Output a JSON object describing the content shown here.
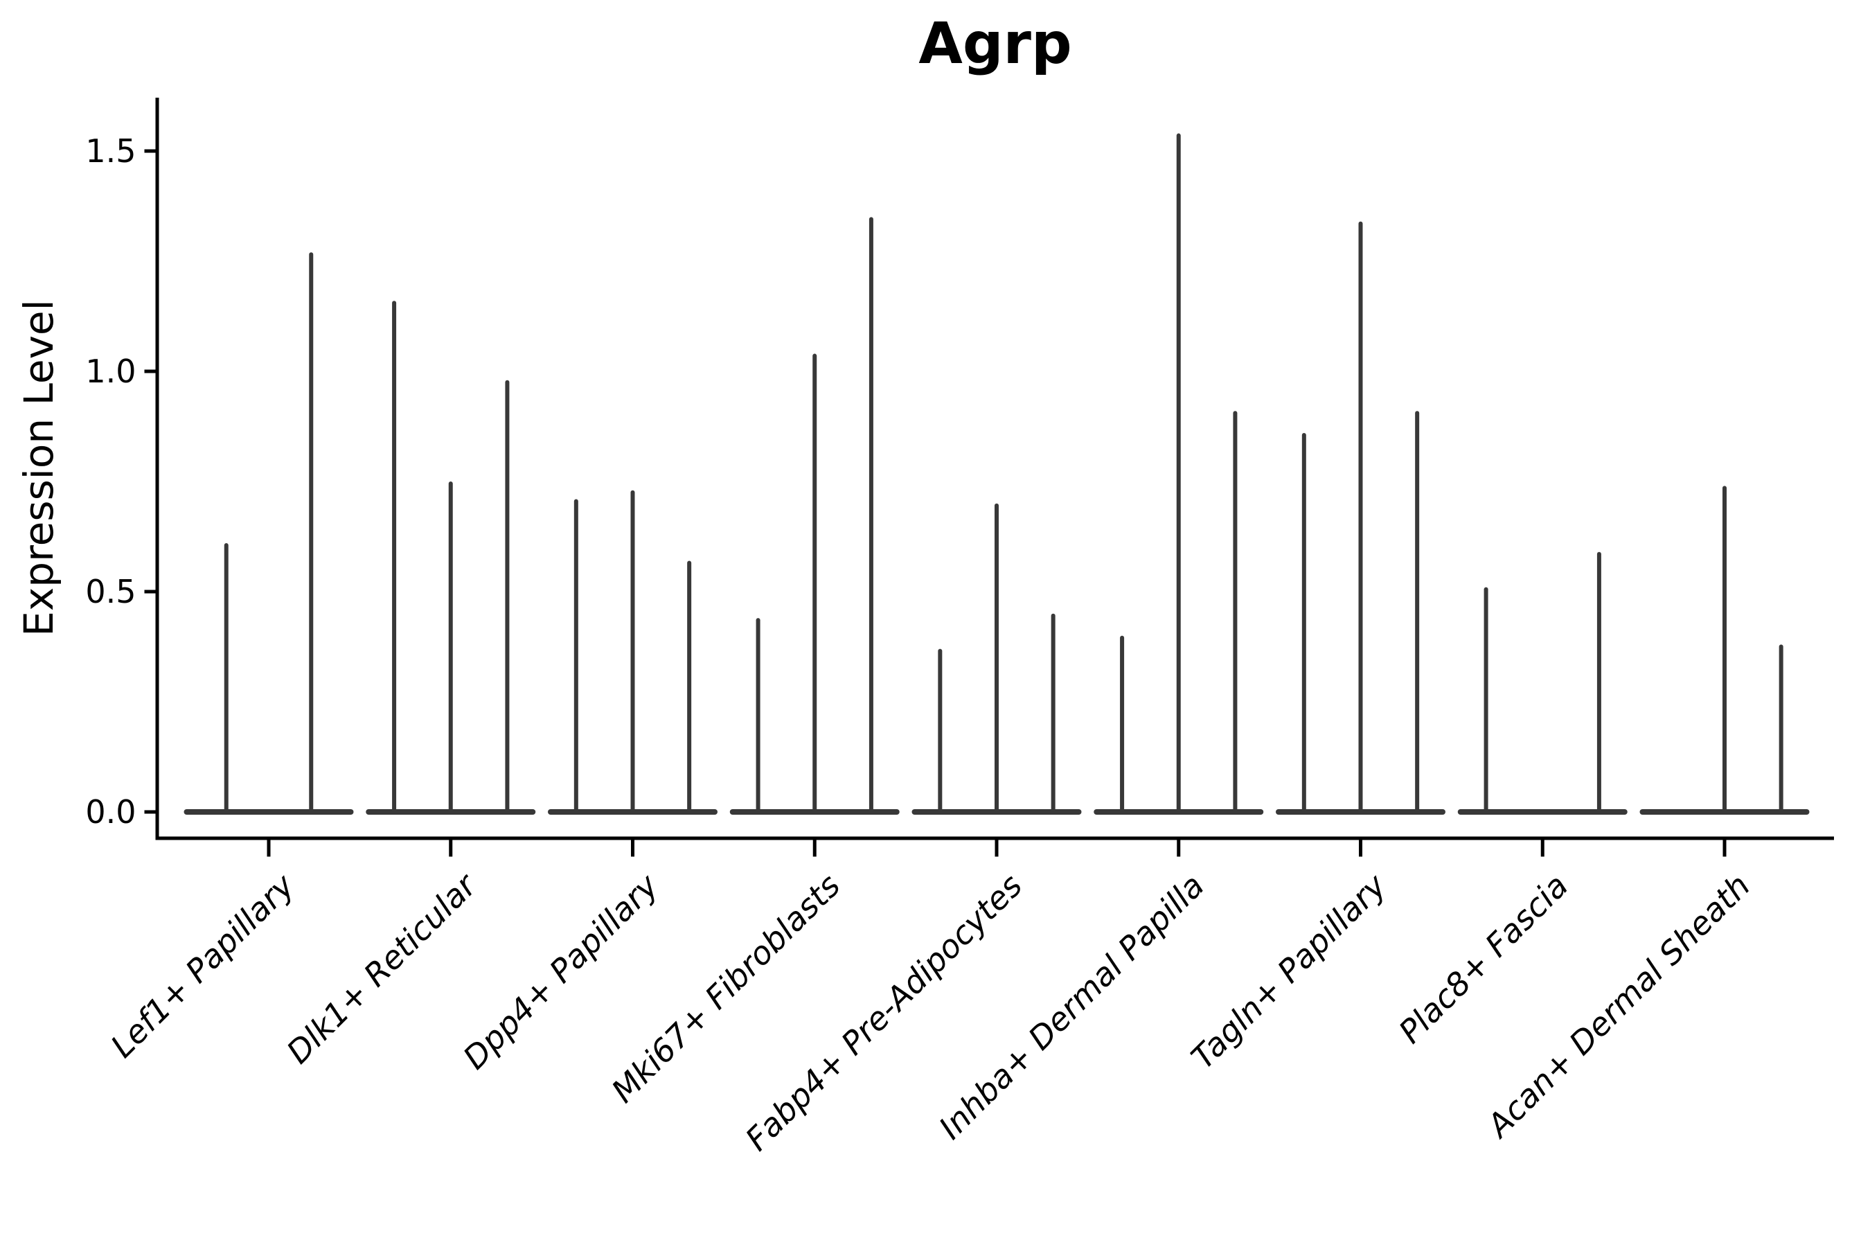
{
  "title": "Agrp",
  "chart_data": {
    "type": "violin",
    "title": "Agrp",
    "xlabel": "",
    "ylabel": "Expression Level",
    "yticks": [
      0.0,
      0.5,
      1.0,
      1.5
    ],
    "yticklabels": [
      "0.0",
      "0.5",
      "1.0",
      "1.5"
    ],
    "ylim": [
      -0.06,
      1.62
    ],
    "grid": false,
    "legend": false,
    "colors": {
      "violin": "#383838",
      "axis": "#000000",
      "background": "#ffffff"
    },
    "violins": [
      {
        "category": "Lef1+ Papillary",
        "slots": 2,
        "spikes": [
          {
            "slot": 0,
            "value": 0.61
          },
          {
            "slot": 1,
            "value": 1.27
          }
        ]
      },
      {
        "category": "Dlk1+ Reticular",
        "slots": 3,
        "spikes": [
          {
            "slot": 0,
            "value": 1.16
          },
          {
            "slot": 1,
            "value": 0.75
          },
          {
            "slot": 2,
            "value": 0.98
          }
        ]
      },
      {
        "category": "Dpp4+ Papillary",
        "slots": 3,
        "spikes": [
          {
            "slot": 0,
            "value": 0.71
          },
          {
            "slot": 1,
            "value": 0.73
          },
          {
            "slot": 2,
            "value": 0.57
          }
        ]
      },
      {
        "category": "Mki67+ Fibroblasts",
        "slots": 3,
        "spikes": [
          {
            "slot": 0,
            "value": 0.44
          },
          {
            "slot": 1,
            "value": 1.04
          },
          {
            "slot": 2,
            "value": 1.35
          }
        ]
      },
      {
        "category": "Fabp4+ Pre-Adipocytes",
        "slots": 3,
        "spikes": [
          {
            "slot": 0,
            "value": 0.37
          },
          {
            "slot": 1,
            "value": 0.7
          },
          {
            "slot": 2,
            "value": 0.45
          }
        ]
      },
      {
        "category": "Inhba+ Dermal Papilla",
        "slots": 3,
        "spikes": [
          {
            "slot": 0,
            "value": 0.4
          },
          {
            "slot": 1,
            "value": 1.54
          },
          {
            "slot": 2,
            "value": 0.91
          }
        ]
      },
      {
        "category": "Tagln+ Papillary",
        "slots": 3,
        "spikes": [
          {
            "slot": 0,
            "value": 0.86
          },
          {
            "slot": 1,
            "value": 1.34
          },
          {
            "slot": 2,
            "value": 0.91
          }
        ]
      },
      {
        "category": "Plac8+ Fascia",
        "slots": 3,
        "spikes": [
          {
            "slot": 0,
            "value": 0.51
          },
          {
            "slot": 2,
            "value": 0.59
          }
        ]
      },
      {
        "category": "Acan+ Dermal Sheath",
        "slots": 3,
        "spikes": [
          {
            "slot": 1,
            "value": 0.74
          },
          {
            "slot": 2,
            "value": 0.38
          }
        ]
      }
    ]
  }
}
